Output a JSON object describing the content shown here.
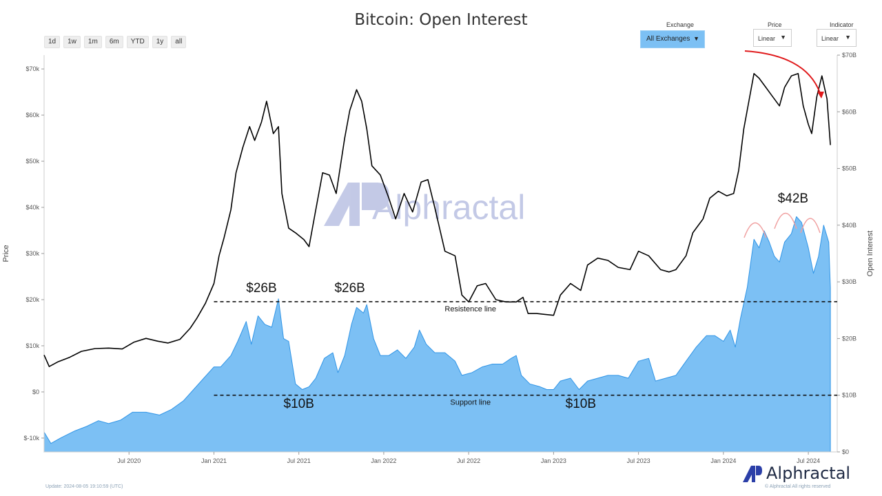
{
  "header": {
    "title": "Bitcoin: Open Interest"
  },
  "range_buttons": [
    "1d",
    "1w",
    "1m",
    "6m",
    "YTD",
    "1y",
    "all"
  ],
  "controls": {
    "exchange_label": "Exchange",
    "exchange_value": "All Exchanges",
    "price_label": "Price",
    "price_value": "Linear",
    "indicator_label": "Indicator",
    "indicator_value": "Linear",
    "arrow": "▼"
  },
  "watermark": {
    "text": "Alphractal"
  },
  "footer": {
    "update": "Update: 2024-08-05 19:10:59 (UTC)",
    "rights": "© Alphractal All rights reserved",
    "brand": "Alphractal"
  },
  "colors": {
    "price_line": "#000000",
    "oi_fill": "#7cc0f4",
    "oi_edge": "#2f94e6",
    "accent_red": "#e0191b",
    "logo_blue": "#2b3fa8"
  },
  "chart_data": {
    "type": "line+area",
    "title": "Bitcoin: Open Interest",
    "xlabel": "",
    "ylabel": "Price",
    "y2label": "Open Interest",
    "x_start": 2020.0,
    "x_end": 2024.67,
    "x_ticks": [
      {
        "t": 2020.5,
        "label": "Jul 2020"
      },
      {
        "t": 2021.0,
        "label": "Jan 2021"
      },
      {
        "t": 2021.5,
        "label": "Jul 2021"
      },
      {
        "t": 2022.0,
        "label": "Jan 2022"
      },
      {
        "t": 2022.5,
        "label": "Jul 2022"
      },
      {
        "t": 2023.0,
        "label": "Jan 2023"
      },
      {
        "t": 2023.5,
        "label": "Jul 2023"
      },
      {
        "t": 2024.0,
        "label": "Jan 2024"
      },
      {
        "t": 2024.5,
        "label": "Jul 2024"
      }
    ],
    "price_axis": {
      "ylim": [
        -13000,
        73000
      ],
      "ticks": [
        {
          "v": 70000,
          "label": "$70k"
        },
        {
          "v": 60000,
          "label": "$60k"
        },
        {
          "v": 50000,
          "label": "$50k"
        },
        {
          "v": 40000,
          "label": "$40k"
        },
        {
          "v": 30000,
          "label": "$30k"
        },
        {
          "v": 20000,
          "label": "$20k"
        },
        {
          "v": 10000,
          "label": "$10k"
        },
        {
          "v": 0,
          "label": "$0"
        },
        {
          "v": -10000,
          "label": "$-10k"
        }
      ]
    },
    "oi_axis": {
      "ylim": [
        0,
        70000000000
      ],
      "ticks": [
        {
          "v": 70000000000,
          "label": "$70B"
        },
        {
          "v": 60000000000,
          "label": "$60B"
        },
        {
          "v": 50000000000,
          "label": "$50B"
        },
        {
          "v": 40000000000,
          "label": "$40B"
        },
        {
          "v": 30000000000,
          "label": "$30B"
        },
        {
          "v": 20000000000,
          "label": "$20B"
        },
        {
          "v": 10000000000,
          "label": "$10B"
        },
        {
          "v": 0,
          "label": "$0"
        }
      ]
    },
    "series": [
      {
        "name": "Price",
        "axis": "price",
        "kind": "line",
        "points": [
          [
            2020.0,
            8000
          ],
          [
            2020.03,
            5500
          ],
          [
            2020.08,
            6500
          ],
          [
            2020.15,
            7500
          ],
          [
            2020.22,
            8800
          ],
          [
            2020.3,
            9400
          ],
          [
            2020.38,
            9500
          ],
          [
            2020.46,
            9300
          ],
          [
            2020.53,
            10800
          ],
          [
            2020.6,
            11600
          ],
          [
            2020.67,
            11000
          ],
          [
            2020.73,
            10600
          ],
          [
            2020.8,
            11400
          ],
          [
            2020.86,
            13800
          ],
          [
            2020.9,
            16000
          ],
          [
            2020.95,
            19200
          ],
          [
            2021.0,
            23500
          ],
          [
            2021.03,
            29500
          ],
          [
            2021.06,
            33500
          ],
          [
            2021.1,
            39500
          ],
          [
            2021.13,
            47500
          ],
          [
            2021.17,
            53000
          ],
          [
            2021.21,
            57500
          ],
          [
            2021.24,
            54500
          ],
          [
            2021.28,
            58500
          ],
          [
            2021.31,
            63000
          ],
          [
            2021.35,
            56000
          ],
          [
            2021.38,
            57500
          ],
          [
            2021.4,
            43000
          ],
          [
            2021.44,
            35500
          ],
          [
            2021.48,
            34500
          ],
          [
            2021.53,
            33000
          ],
          [
            2021.56,
            31500
          ],
          [
            2021.6,
            39500
          ],
          [
            2021.64,
            47500
          ],
          [
            2021.68,
            47000
          ],
          [
            2021.72,
            43000
          ],
          [
            2021.77,
            55000
          ],
          [
            2021.8,
            61000
          ],
          [
            2021.84,
            65500
          ],
          [
            2021.87,
            63000
          ],
          [
            2021.9,
            57000
          ],
          [
            2021.93,
            49000
          ],
          [
            2021.98,
            47000
          ],
          [
            2022.03,
            42000
          ],
          [
            2022.07,
            37500
          ],
          [
            2022.12,
            43000
          ],
          [
            2022.17,
            39000
          ],
          [
            2022.22,
            45500
          ],
          [
            2022.26,
            46000
          ],
          [
            2022.3,
            40000
          ],
          [
            2022.36,
            30500
          ],
          [
            2022.42,
            29500
          ],
          [
            2022.46,
            21000
          ],
          [
            2022.5,
            19500
          ],
          [
            2022.55,
            23000
          ],
          [
            2022.6,
            23500
          ],
          [
            2022.66,
            20000
          ],
          [
            2022.72,
            19500
          ],
          [
            2022.78,
            19500
          ],
          [
            2022.82,
            20500
          ],
          [
            2022.85,
            17000
          ],
          [
            2022.9,
            17000
          ],
          [
            2022.95,
            16800
          ],
          [
            2023.0,
            16600
          ],
          [
            2023.04,
            21000
          ],
          [
            2023.1,
            23500
          ],
          [
            2023.16,
            22000
          ],
          [
            2023.2,
            27500
          ],
          [
            2023.26,
            29000
          ],
          [
            2023.32,
            28500
          ],
          [
            2023.38,
            27000
          ],
          [
            2023.45,
            26500
          ],
          [
            2023.5,
            30500
          ],
          [
            2023.56,
            29500
          ],
          [
            2023.63,
            26500
          ],
          [
            2023.68,
            26000
          ],
          [
            2023.72,
            26500
          ],
          [
            2023.78,
            29500
          ],
          [
            2023.82,
            34500
          ],
          [
            2023.88,
            37500
          ],
          [
            2023.92,
            42000
          ],
          [
            2023.97,
            43500
          ],
          [
            2024.02,
            42500
          ],
          [
            2024.06,
            43000
          ],
          [
            2024.09,
            48000
          ],
          [
            2024.12,
            57000
          ],
          [
            2024.15,
            63000
          ],
          [
            2024.18,
            69000
          ],
          [
            2024.21,
            68000
          ],
          [
            2024.25,
            66000
          ],
          [
            2024.29,
            64000
          ],
          [
            2024.33,
            62000
          ],
          [
            2024.36,
            66000
          ],
          [
            2024.4,
            68500
          ],
          [
            2024.44,
            69000
          ],
          [
            2024.47,
            62000
          ],
          [
            2024.5,
            58000
          ],
          [
            2024.52,
            56000
          ],
          [
            2024.55,
            64000
          ],
          [
            2024.58,
            68500
          ],
          [
            2024.61,
            63500
          ],
          [
            2024.63,
            53500
          ]
        ]
      },
      {
        "name": "Open Interest",
        "axis": "oi",
        "kind": "area",
        "points": [
          [
            2020.0,
            3500000000
          ],
          [
            2020.04,
            1500000000
          ],
          [
            2020.1,
            2500000000
          ],
          [
            2020.18,
            3700000000
          ],
          [
            2020.25,
            4500000000
          ],
          [
            2020.32,
            5500000000
          ],
          [
            2020.38,
            5000000000
          ],
          [
            2020.45,
            5600000000
          ],
          [
            2020.52,
            7000000000
          ],
          [
            2020.6,
            7000000000
          ],
          [
            2020.68,
            6500000000
          ],
          [
            2020.75,
            7500000000
          ],
          [
            2020.82,
            9000000000
          ],
          [
            2020.88,
            11000000000
          ],
          [
            2020.94,
            13000000000
          ],
          [
            2021.0,
            15000000000
          ],
          [
            2021.04,
            15000000000
          ],
          [
            2021.1,
            17000000000
          ],
          [
            2021.14,
            19500000000
          ],
          [
            2021.19,
            23000000000
          ],
          [
            2021.22,
            19000000000
          ],
          [
            2021.26,
            24000000000
          ],
          [
            2021.3,
            22500000000
          ],
          [
            2021.34,
            22000000000
          ],
          [
            2021.38,
            27000000000
          ],
          [
            2021.41,
            20000000000
          ],
          [
            2021.44,
            19500000000
          ],
          [
            2021.48,
            12000000000
          ],
          [
            2021.52,
            11000000000
          ],
          [
            2021.56,
            11500000000
          ],
          [
            2021.6,
            13000000000
          ],
          [
            2021.65,
            16500000000
          ],
          [
            2021.7,
            17500000000
          ],
          [
            2021.73,
            14000000000
          ],
          [
            2021.77,
            17000000000
          ],
          [
            2021.81,
            22500000000
          ],
          [
            2021.84,
            25500000000
          ],
          [
            2021.88,
            24500000000
          ],
          [
            2021.9,
            26000000000
          ],
          [
            2021.94,
            20000000000
          ],
          [
            2021.98,
            17000000000
          ],
          [
            2022.03,
            17000000000
          ],
          [
            2022.08,
            18000000000
          ],
          [
            2022.13,
            16500000000
          ],
          [
            2022.18,
            18500000000
          ],
          [
            2022.21,
            21500000000
          ],
          [
            2022.25,
            19000000000
          ],
          [
            2022.3,
            17500000000
          ],
          [
            2022.36,
            17500000000
          ],
          [
            2022.42,
            16000000000
          ],
          [
            2022.46,
            13500000000
          ],
          [
            2022.52,
            14000000000
          ],
          [
            2022.58,
            15000000000
          ],
          [
            2022.64,
            15500000000
          ],
          [
            2022.7,
            15500000000
          ],
          [
            2022.75,
            16500000000
          ],
          [
            2022.78,
            17000000000
          ],
          [
            2022.81,
            13500000000
          ],
          [
            2022.86,
            12000000000
          ],
          [
            2022.92,
            11500000000
          ],
          [
            2022.96,
            11000000000
          ],
          [
            2023.0,
            11000000000
          ],
          [
            2023.04,
            12500000000
          ],
          [
            2023.1,
            13000000000
          ],
          [
            2023.15,
            11000000000
          ],
          [
            2023.2,
            12500000000
          ],
          [
            2023.26,
            13000000000
          ],
          [
            2023.32,
            13500000000
          ],
          [
            2023.38,
            13500000000
          ],
          [
            2023.44,
            13000000000
          ],
          [
            2023.5,
            16000000000
          ],
          [
            2023.56,
            16500000000
          ],
          [
            2023.6,
            12500000000
          ],
          [
            2023.66,
            13000000000
          ],
          [
            2023.72,
            13500000000
          ],
          [
            2023.78,
            16000000000
          ],
          [
            2023.84,
            18500000000
          ],
          [
            2023.9,
            20500000000
          ],
          [
            2023.95,
            20500000000
          ],
          [
            2024.0,
            19500000000
          ],
          [
            2024.04,
            21500000000
          ],
          [
            2024.07,
            18500000000
          ],
          [
            2024.1,
            23500000000
          ],
          [
            2024.14,
            29000000000
          ],
          [
            2024.18,
            37500000000
          ],
          [
            2024.21,
            36000000000
          ],
          [
            2024.24,
            39000000000
          ],
          [
            2024.27,
            37000000000
          ],
          [
            2024.3,
            34500000000
          ],
          [
            2024.33,
            33500000000
          ],
          [
            2024.36,
            37000000000
          ],
          [
            2024.4,
            38500000000
          ],
          [
            2024.43,
            41500000000
          ],
          [
            2024.46,
            40500000000
          ],
          [
            2024.5,
            36000000000
          ],
          [
            2024.53,
            31500000000
          ],
          [
            2024.56,
            34500000000
          ],
          [
            2024.59,
            40000000000
          ],
          [
            2024.62,
            37000000000
          ],
          [
            2024.63,
            29000000000
          ]
        ]
      }
    ],
    "reference_lines": [
      {
        "name": "Resistence line",
        "axis": "oi",
        "value": 26500000000,
        "t_start": 2021.0,
        "t_end": 2024.67,
        "label": "Resistence line"
      },
      {
        "name": "Support line",
        "axis": "oi",
        "value": 10000000000,
        "t_start": 2021.0,
        "t_end": 2024.67,
        "label": "Support line"
      }
    ],
    "annotations": [
      {
        "text": "$26B",
        "t": 2021.28,
        "axis": "oi",
        "v": 28200000000
      },
      {
        "text": "$26B",
        "t": 2021.8,
        "axis": "oi",
        "v": 28200000000
      },
      {
        "text": "$10B",
        "t": 2021.5,
        "axis": "oi",
        "v": 7800000000
      },
      {
        "text": "$10B",
        "t": 2023.16,
        "axis": "oi",
        "v": 7800000000
      },
      {
        "text": "$42B",
        "t": 2024.41,
        "axis": "oi",
        "v": 44000000000
      }
    ]
  }
}
